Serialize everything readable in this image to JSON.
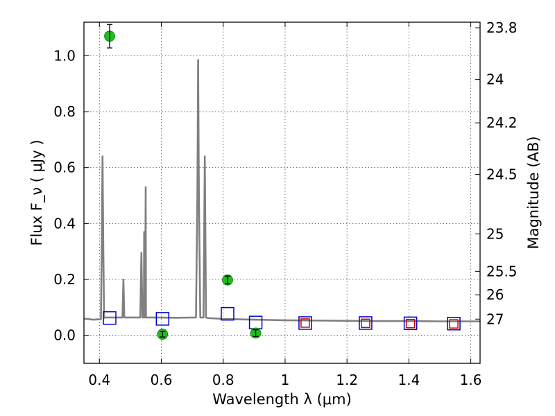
{
  "chart_data": {
    "type": "scatter",
    "xlabel": "Wavelength  λ (μm)",
    "ylabel": "Flux  F_ν  ( μJy )",
    "ylabel_right": "Magnitude (AB)",
    "xlim": [
      0.35,
      1.63
    ],
    "ylim": [
      -0.1,
      1.12
    ],
    "grid": true,
    "x_ticks": [
      0.4,
      0.6,
      0.8,
      1.0,
      1.2,
      1.4,
      1.6
    ],
    "x_tick_labels": [
      "0.4",
      "0.6",
      "0.8",
      "1",
      "1.2",
      "1.4",
      "1.6"
    ],
    "y_ticks": [
      0.0,
      0.2,
      0.4,
      0.6,
      0.8,
      1.0
    ],
    "y_tick_labels": [
      "0.0",
      "0.2",
      "0.4",
      "0.6",
      "0.8",
      "1.0"
    ],
    "right_ticks": [
      {
        "label": "23.8",
        "flux": 1.1
      },
      {
        "label": "24",
        "flux": 0.915
      },
      {
        "label": "24.2",
        "flux": 0.76
      },
      {
        "label": "24.5",
        "flux": 0.576
      },
      {
        "label": "25",
        "flux": 0.363
      },
      {
        "label": "25.5",
        "flux": 0.229
      },
      {
        "label": "26",
        "flux": 0.145
      },
      {
        "label": "27",
        "flux": 0.058
      }
    ],
    "series": [
      {
        "kind": "spectrum",
        "color": "#808080",
        "x": [
          0.35,
          0.38,
          0.405,
          0.4075,
          0.41,
          0.4125,
          0.415,
          0.42,
          0.46,
          0.4745,
          0.4775,
          0.4805,
          0.5,
          0.532,
          0.5355,
          0.539,
          0.5435,
          0.5445,
          0.5455,
          0.5475,
          0.5495,
          0.5505,
          0.5515,
          0.5545,
          0.5575,
          0.58,
          0.65,
          0.712,
          0.7165,
          0.719,
          0.7215,
          0.726,
          0.733,
          0.7365,
          0.7405,
          0.7445,
          0.75,
          0.8,
          0.86,
          0.9,
          0.95,
          1.0,
          1.1,
          1.2,
          1.3,
          1.4,
          1.5,
          1.63
        ],
        "y": [
          0.06,
          0.056,
          0.058,
          0.32,
          0.64,
          0.32,
          0.062,
          0.064,
          0.064,
          0.064,
          0.2,
          0.064,
          0.064,
          0.064,
          0.295,
          0.064,
          0.064,
          0.37,
          0.064,
          0.064,
          0.53,
          0.064,
          0.064,
          0.064,
          0.064,
          0.064,
          0.063,
          0.064,
          0.5,
          0.985,
          0.5,
          0.064,
          0.064,
          0.064,
          0.64,
          0.064,
          0.062,
          0.059,
          0.057,
          0.056,
          0.055,
          0.054,
          0.053,
          0.052,
          0.051,
          0.051,
          0.05,
          0.05
        ]
      },
      {
        "kind": "squares",
        "color": "#0000cc",
        "x": [
          0.433,
          0.604,
          0.814,
          0.905,
          1.065,
          1.26,
          1.405,
          1.545
        ],
        "y": [
          0.062,
          0.059,
          0.077,
          0.046,
          0.044,
          0.044,
          0.043,
          0.042
        ]
      },
      {
        "kind": "squares",
        "color": "#cc0000",
        "x": [
          1.065,
          1.26,
          1.405,
          1.545
        ],
        "y": [
          0.044,
          0.043,
          0.042,
          0.041
        ]
      },
      {
        "kind": "points",
        "color": "#22bb22",
        "x": [
          0.433,
          0.604,
          0.814,
          0.905
        ],
        "y": [
          1.07,
          0.004,
          0.198,
          0.008
        ],
        "err": [
          0.042,
          0.01,
          0.014,
          0.012
        ]
      }
    ]
  }
}
